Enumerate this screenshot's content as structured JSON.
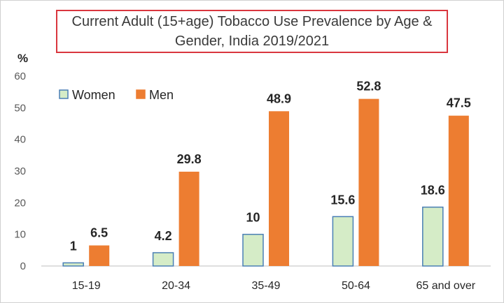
{
  "chart_data": {
    "type": "bar",
    "title": "Current Adult (15+age) Tobacco Use Prevalence by Age &\nGender,  India 2019/2021",
    "ylabel": "%",
    "xlabel": "",
    "ylim": [
      0,
      60
    ],
    "yticks": [
      0,
      10,
      20,
      30,
      40,
      50,
      60
    ],
    "grid": false,
    "legend_position": "top-left",
    "categories": [
      "15-19",
      "20-34",
      "35-49",
      "50-64",
      "65 and over"
    ],
    "series": [
      {
        "name": "Women",
        "values": [
          1,
          4.2,
          10,
          15.6,
          18.6
        ],
        "labels": [
          "1",
          "4.2",
          "10",
          "15.6",
          "18.6"
        ],
        "fill": "#d5ecc7",
        "stroke": "#4a7fb5"
      },
      {
        "name": "Men",
        "values": [
          6.5,
          29.8,
          48.9,
          52.8,
          47.5
        ],
        "labels": [
          "6.5",
          "29.8",
          "48.9",
          "52.8",
          "47.5"
        ],
        "fill": "#ed7d31",
        "stroke": "#ed7d31"
      }
    ]
  }
}
